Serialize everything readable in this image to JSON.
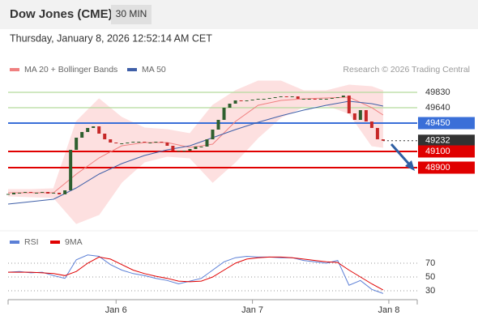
{
  "header": {
    "title": "Dow Jones (CME)",
    "timeframe": "30 MIN",
    "timestamp": "Thursday, January 8, 2026 12:52:14 AM CET",
    "source": "Research © 2026 Trading Central"
  },
  "chart_data": [
    {
      "type": "candlestick",
      "values": [
        48570,
        48590,
        48590,
        48600,
        48590,
        48590,
        48600,
        48580,
        48590,
        48570,
        48620,
        49120,
        49270,
        49340,
        49390,
        49410,
        49320,
        49250,
        49210,
        49200,
        49200,
        49210,
        49220,
        49220,
        49210,
        49210,
        49220,
        49210,
        49170,
        49110,
        49110,
        49110,
        49130,
        49160,
        49160,
        49250,
        49370,
        49490,
        49640,
        49690,
        49730,
        49720,
        49730,
        49740,
        49750,
        49750,
        49760,
        49770,
        49780,
        49770,
        49780,
        49750,
        49750,
        49750,
        49740,
        49750,
        49750,
        49760,
        49770,
        49790,
        49570,
        49490,
        49610,
        49470,
        49390,
        49250,
        49232
      ],
      "up_color": "#2f5f2f",
      "down_color": "#c62828",
      "xlim": [
        0,
        72
      ],
      "ylim": [
        48190,
        49990
      ],
      "overlays": [
        {
          "name": "MA 20 + Bollinger Bands",
          "color": "#f08080",
          "band_color": "#fde0e0",
          "x": [
            0,
            4,
            8,
            12,
            16,
            20,
            24,
            28,
            32,
            36,
            40,
            44,
            48,
            52,
            56,
            60,
            64,
            66
          ],
          "values": [
            48590,
            48590,
            48590,
            48820,
            49020,
            49170,
            49210,
            49210,
            49150,
            49190,
            49470,
            49670,
            49730,
            49750,
            49760,
            49770,
            49640,
            49550
          ],
          "upper": [
            48630,
            48630,
            48640,
            49470,
            49750,
            49520,
            49390,
            49370,
            49320,
            49670,
            49850,
            49970,
            49970,
            49850,
            49850,
            49920,
            49900,
            49850
          ],
          "lower": [
            48550,
            48540,
            48530,
            48210,
            48320,
            48720,
            48970,
            49040,
            49020,
            48720,
            48970,
            49270,
            49520,
            49650,
            49670,
            49570,
            49170,
            49150
          ]
        },
        {
          "name": "MA 50",
          "color": "#3f5fa8",
          "x": [
            0,
            4,
            8,
            12,
            16,
            20,
            24,
            28,
            32,
            36,
            40,
            44,
            48,
            52,
            56,
            60,
            64,
            66
          ],
          "values": [
            48450,
            48480,
            48510,
            48650,
            48820,
            48950,
            49050,
            49120,
            49170,
            49270,
            49370,
            49460,
            49540,
            49610,
            49670,
            49720,
            49690,
            49660
          ]
        }
      ],
      "levels": [
        {
          "value": 49830,
          "color": "#b5d99c",
          "label_style": "plain"
        },
        {
          "value": 49640,
          "color": "#b5d99c",
          "label_style": "plain"
        },
        {
          "value": 49450,
          "color": "#3a6fd8",
          "label_style": "box"
        },
        {
          "value": 49232,
          "color": "#333333",
          "label_style": "box",
          "line_style": "dotted"
        },
        {
          "value": 49100,
          "color": "#e00000",
          "label_style": "box"
        },
        {
          "value": 48900,
          "color": "#e00000",
          "label_style": "box"
        }
      ]
    },
    {
      "type": "line",
      "series": [
        {
          "name": "RSI",
          "color": "#5b7fd6",
          "x": [
            0,
            2,
            4,
            6,
            8,
            10,
            12,
            14,
            16,
            18,
            20,
            22,
            24,
            26,
            28,
            30,
            32,
            34,
            36,
            38,
            40,
            42,
            44,
            46,
            48,
            50,
            52,
            54,
            56,
            58,
            60,
            62,
            64,
            66
          ],
          "values": [
            57,
            58,
            56,
            57,
            52,
            48,
            75,
            82,
            80,
            68,
            60,
            55,
            52,
            48,
            45,
            40,
            44,
            48,
            60,
            72,
            78,
            80,
            79,
            79,
            78,
            78,
            74,
            72,
            70,
            74,
            38,
            45,
            32,
            26
          ]
        },
        {
          "name": "9MA",
          "color": "#e00000",
          "x": [
            0,
            2,
            4,
            6,
            8,
            10,
            12,
            14,
            16,
            18,
            20,
            22,
            24,
            26,
            28,
            30,
            32,
            34,
            36,
            38,
            40,
            42,
            44,
            46,
            48,
            50,
            52,
            54,
            56,
            58,
            60,
            62,
            64,
            66
          ],
          "values": [
            57,
            57,
            57,
            56,
            55,
            52,
            58,
            70,
            79,
            76,
            68,
            60,
            55,
            51,
            48,
            44,
            43,
            44,
            50,
            60,
            70,
            76,
            78,
            79,
            79,
            78,
            76,
            74,
            72,
            71,
            60,
            50,
            40,
            31
          ]
        }
      ],
      "xlim": [
        0,
        72
      ],
      "xticks": [
        {
          "value": 19,
          "label": "Jan 6"
        },
        {
          "value": 43,
          "label": "Jan 7"
        },
        {
          "value": 67,
          "label": "Jan 8"
        }
      ],
      "ylim": [
        15,
        85
      ],
      "yticks": [
        70,
        50,
        30
      ],
      "grid": true
    }
  ]
}
